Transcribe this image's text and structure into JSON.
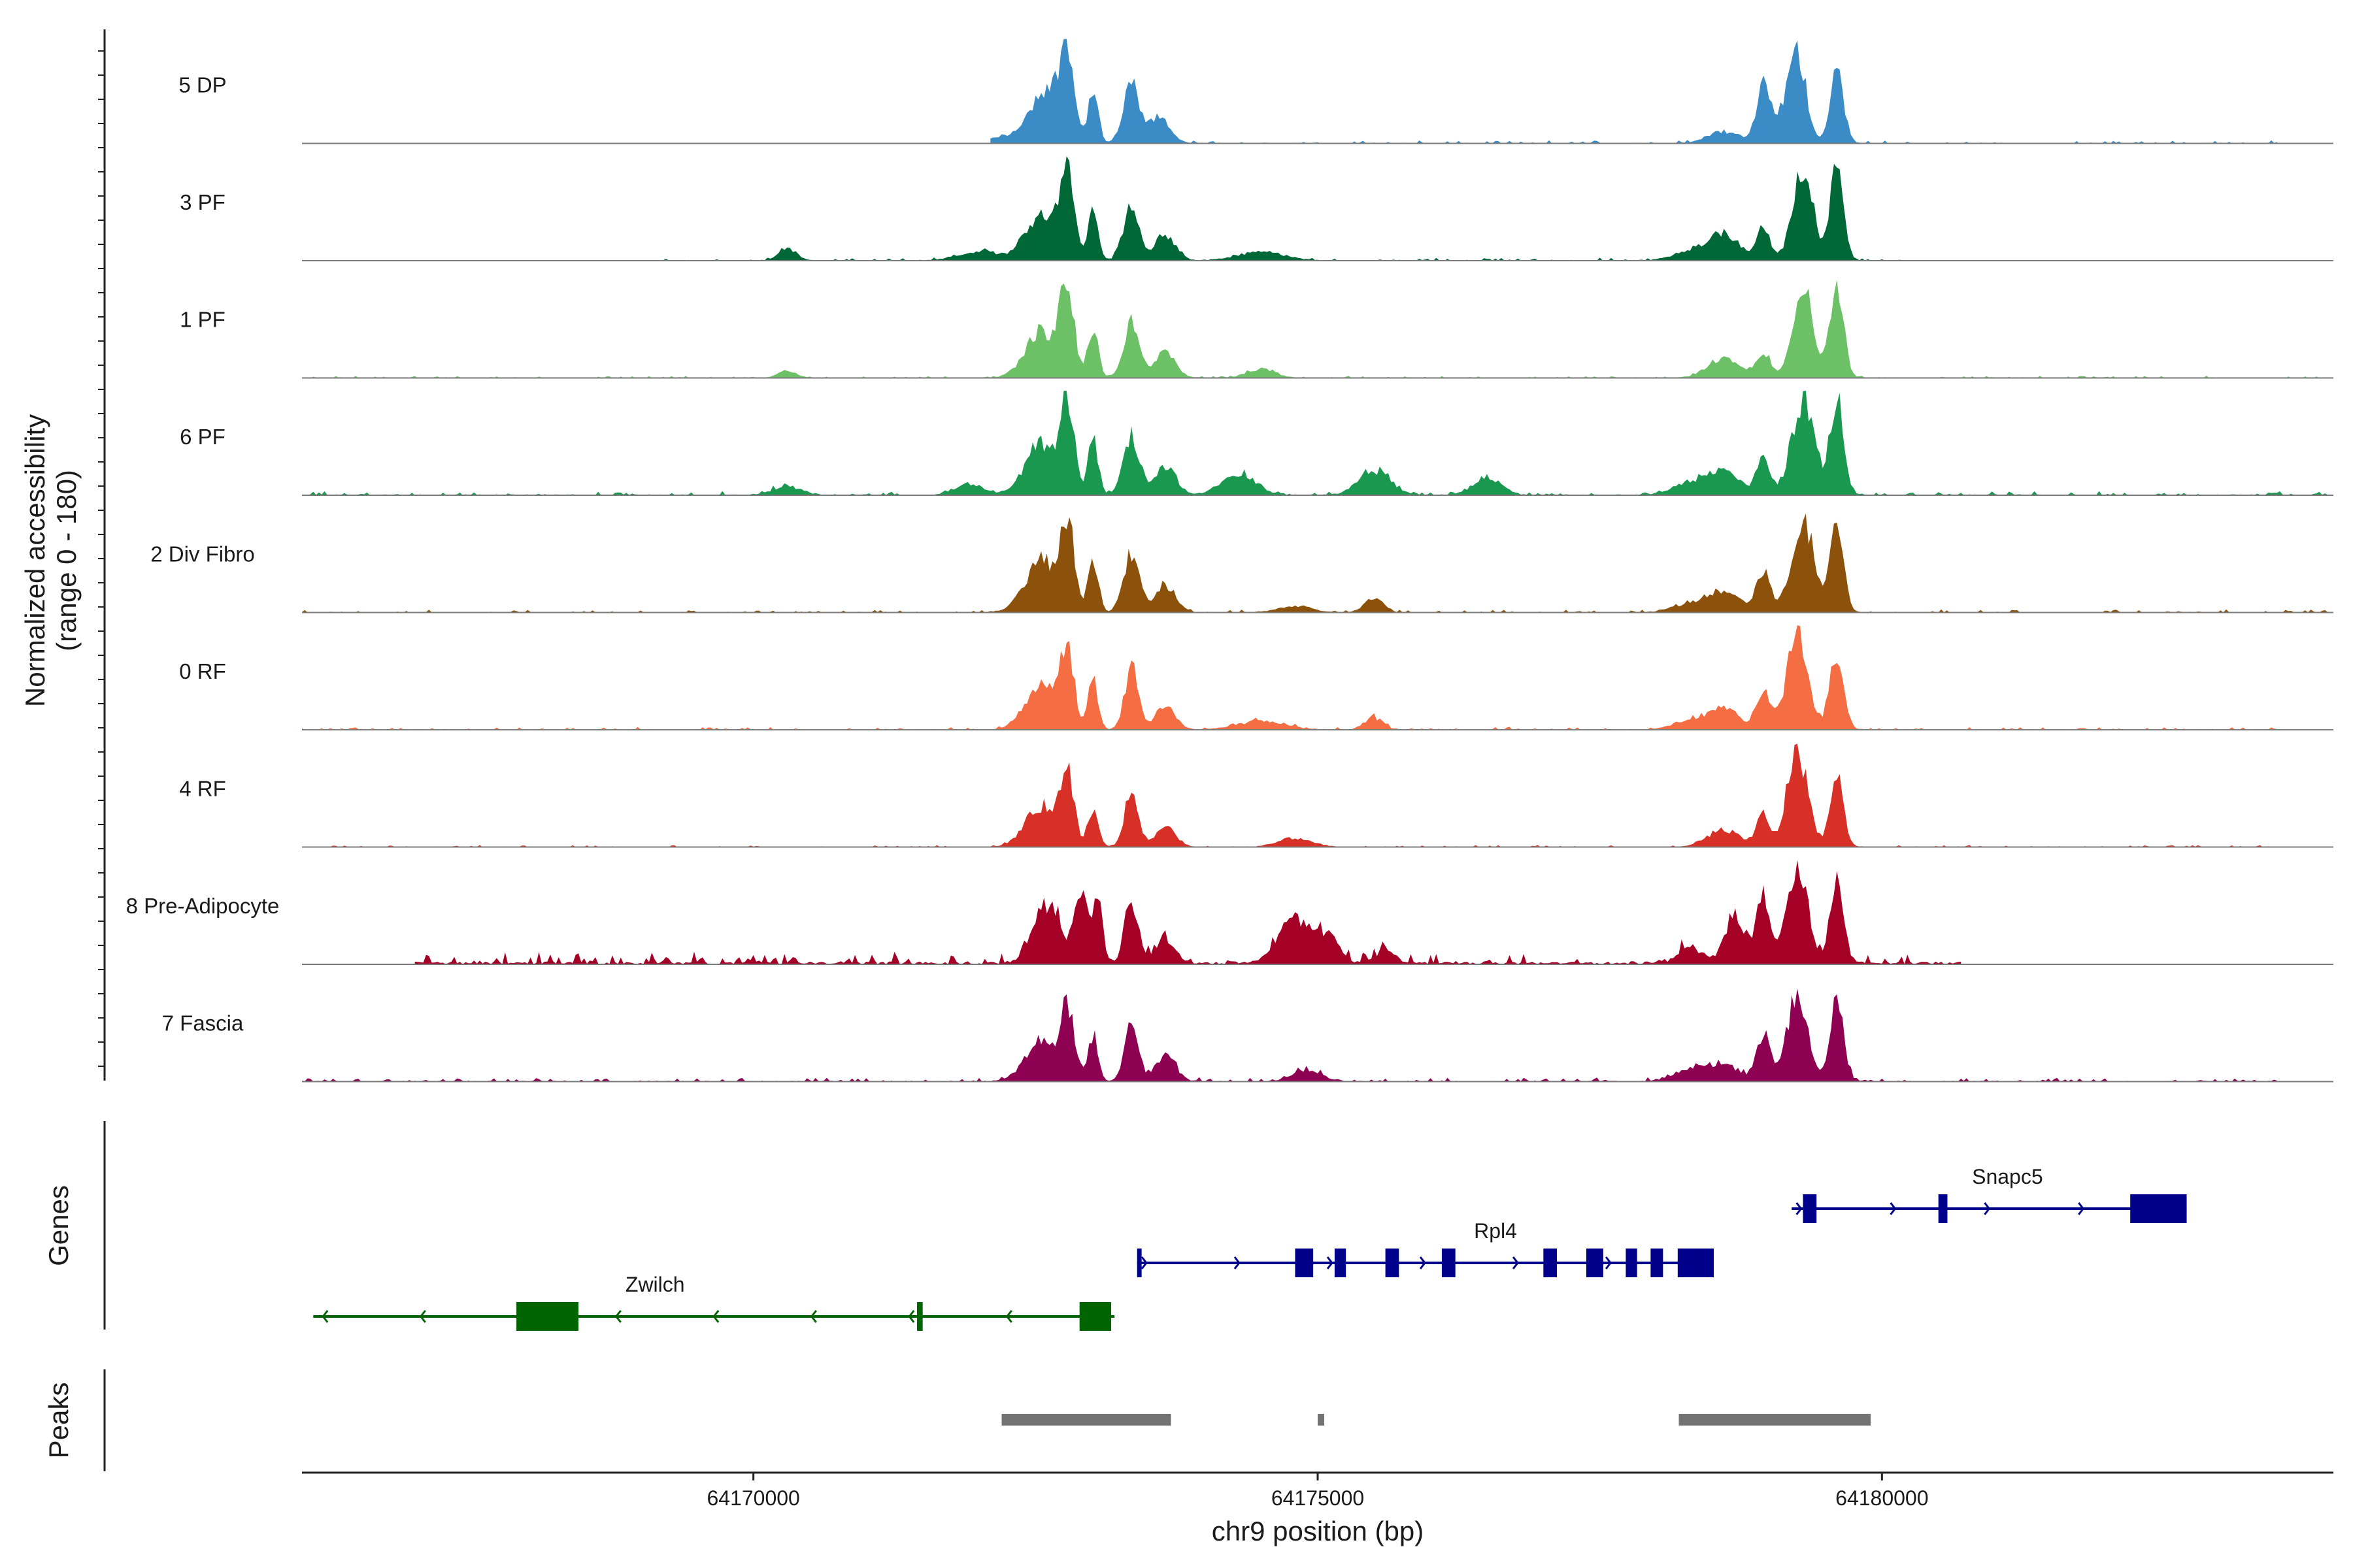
{
  "chart_data": {
    "type": "area",
    "title": "",
    "ylabel_line1": "Normalized accessibility",
    "ylabel_line2": "(range 0 - 180)",
    "xlabel": "chr9 position (bp)",
    "xlim": [
      64166000,
      64184000
    ],
    "ylim": [
      0,
      180
    ],
    "x_ticks": [
      64170000,
      64175000,
      64180000
    ],
    "x_tick_labels": [
      "64170000",
      "64175000",
      "64180000"
    ],
    "tracks": [
      {
        "name": "5 DP",
        "color": "#3A8BC6",
        "peaks": [
          [
            64172780,
            150,
            60
          ],
          [
            64172600,
            90,
            130
          ],
          [
            64173010,
            90,
            45
          ],
          [
            64173350,
            100,
            70
          ],
          [
            64173600,
            45,
            90
          ],
          [
            64172300,
            12,
            200
          ],
          [
            64178950,
            95,
            60
          ],
          [
            64179250,
            150,
            80
          ],
          [
            64179600,
            125,
            60
          ],
          [
            64178600,
            20,
            150
          ],
          [
            64179100,
            30,
            70
          ]
        ],
        "range": [
          64172100,
          64183500
        ],
        "noise": 3
      },
      {
        "name": "3 PF",
        "color": "#006837",
        "peaks": [
          [
            64172780,
            150,
            60
          ],
          [
            64172550,
            80,
            140
          ],
          [
            64173010,
            85,
            45
          ],
          [
            64173350,
            95,
            70
          ],
          [
            64173650,
            45,
            90
          ],
          [
            64170300,
            20,
            80
          ],
          [
            64172000,
            15,
            180
          ],
          [
            64174500,
            15,
            200
          ],
          [
            64178600,
            45,
            140
          ],
          [
            64178950,
            55,
            60
          ],
          [
            64179300,
            155,
            90
          ],
          [
            64179600,
            155,
            60
          ],
          [
            64178300,
            15,
            150
          ]
        ],
        "range": [
          64169100,
          64180200
        ],
        "noise": 3
      },
      {
        "name": "1 PF",
        "color": "#6CC066",
        "peaks": [
          [
            64172780,
            150,
            60
          ],
          [
            64172550,
            80,
            140
          ],
          [
            64173010,
            85,
            45
          ],
          [
            64173350,
            95,
            70
          ],
          [
            64173650,
            45,
            90
          ],
          [
            64170300,
            12,
            80
          ],
          [
            64174500,
            15,
            120
          ],
          [
            64178600,
            35,
            140
          ],
          [
            64178950,
            45,
            60
          ],
          [
            64179300,
            160,
            90
          ],
          [
            64179600,
            155,
            60
          ]
        ],
        "range": [
          64166000,
          64184000
        ],
        "noise": 2
      },
      {
        "name": "6 PF",
        "color": "#1A9850",
        "peaks": [
          [
            64172780,
            150,
            60
          ],
          [
            64172550,
            90,
            140
          ],
          [
            64173010,
            95,
            45
          ],
          [
            64173350,
            100,
            70
          ],
          [
            64173650,
            50,
            90
          ],
          [
            64171900,
            20,
            120
          ],
          [
            64174300,
            35,
            150
          ],
          [
            64175500,
            40,
            140
          ],
          [
            64176500,
            30,
            120
          ],
          [
            64170300,
            15,
            120
          ],
          [
            64178600,
            40,
            140
          ],
          [
            64178950,
            60,
            60
          ],
          [
            64179300,
            165,
            100
          ],
          [
            64179600,
            165,
            60
          ],
          [
            64178300,
            20,
            150
          ]
        ],
        "range": [
          64166000,
          64184000
        ],
        "noise": 4
      },
      {
        "name": "2 Div Fibro",
        "color": "#8C510A",
        "peaks": [
          [
            64172780,
            150,
            60
          ],
          [
            64172550,
            90,
            140
          ],
          [
            64173010,
            95,
            45
          ],
          [
            64173350,
            100,
            70
          ],
          [
            64173650,
            45,
            90
          ],
          [
            64174800,
            10,
            150
          ],
          [
            64175500,
            25,
            80
          ],
          [
            64178600,
            35,
            140
          ],
          [
            64178950,
            75,
            60
          ],
          [
            64179300,
            155,
            100
          ],
          [
            64179600,
            140,
            60
          ],
          [
            64178300,
            15,
            150
          ]
        ],
        "range": [
          64166000,
          64184000
        ],
        "noise": 3
      },
      {
        "name": "0 RF",
        "color": "#F46D43",
        "peaks": [
          [
            64172780,
            130,
            60
          ],
          [
            64172550,
            80,
            140
          ],
          [
            64173010,
            85,
            45
          ],
          [
            64173350,
            105,
            60
          ],
          [
            64173650,
            40,
            90
          ],
          [
            64174500,
            15,
            200
          ],
          [
            64175500,
            20,
            80
          ],
          [
            64178600,
            35,
            140
          ],
          [
            64178950,
            65,
            60
          ],
          [
            64179250,
            170,
            90
          ],
          [
            64179600,
            135,
            60
          ],
          [
            64178300,
            15,
            150
          ]
        ],
        "range": [
          64166000,
          64183500
        ],
        "noise": 3
      },
      {
        "name": "4 RF",
        "color": "#D73027",
        "peaks": [
          [
            64172780,
            120,
            60
          ],
          [
            64172550,
            70,
            140
          ],
          [
            64173010,
            65,
            45
          ],
          [
            64173350,
            95,
            60
          ],
          [
            64173650,
            35,
            90
          ],
          [
            64174800,
            15,
            150
          ],
          [
            64178600,
            30,
            140
          ],
          [
            64178950,
            55,
            60
          ],
          [
            64179250,
            165,
            90
          ],
          [
            64179600,
            115,
            60
          ]
        ],
        "range": [
          64166000,
          64183500
        ],
        "noise": 2
      },
      {
        "name": "8 Pre-Adipocyte",
        "color": "#A50026",
        "peaks": [
          [
            64172600,
            100,
            120
          ],
          [
            64172900,
            120,
            60
          ],
          [
            64173050,
            110,
            45
          ],
          [
            64173350,
            110,
            60
          ],
          [
            64173650,
            40,
            90
          ],
          [
            64174800,
            75,
            150
          ],
          [
            64175100,
            40,
            90
          ],
          [
            64175600,
            25,
            80
          ],
          [
            64178700,
            80,
            90
          ],
          [
            64178950,
            120,
            60
          ],
          [
            64179250,
            175,
            90
          ],
          [
            64179600,
            140,
            60
          ],
          [
            64178300,
            30,
            100
          ]
        ],
        "range": [
          64167000,
          64180700
        ],
        "noise": 12
      },
      {
        "name": "7 Fascia",
        "color": "#8E0152",
        "peaks": [
          [
            64172780,
            120,
            60
          ],
          [
            64172550,
            70,
            140
          ],
          [
            64173010,
            80,
            45
          ],
          [
            64173350,
            95,
            60
          ],
          [
            64173650,
            45,
            90
          ],
          [
            64174900,
            20,
            120
          ],
          [
            64178600,
            25,
            140
          ],
          [
            64178950,
            75,
            60
          ],
          [
            64179250,
            150,
            90
          ],
          [
            64179600,
            135,
            60
          ],
          [
            64178300,
            20,
            150
          ]
        ],
        "range": [
          64166000,
          64183500
        ],
        "noise": 4
      }
    ],
    "genes": [
      {
        "name": "Zwilch",
        "strand": "-",
        "color": "#006400",
        "start": 64166100,
        "end": 64173200,
        "row": 2,
        "exons": [
          [
            64167900,
            64168450
          ],
          [
            64171450,
            64171500
          ],
          [
            64172890,
            64173170
          ]
        ]
      },
      {
        "name": "Rpl4",
        "strand": "+",
        "color": "#00008B",
        "start": 64173400,
        "end": 64178500,
        "row": 1,
        "exons": [
          [
            64173400,
            64173440
          ],
          [
            64174800,
            64174960
          ],
          [
            64175150,
            64175250
          ],
          [
            64175600,
            64175720
          ],
          [
            64176100,
            64176220
          ],
          [
            64177000,
            64177120
          ],
          [
            64177380,
            64177530
          ],
          [
            64177730,
            64177830
          ],
          [
            64177950,
            64178060
          ],
          [
            64178190,
            64178510
          ]
        ]
      },
      {
        "name": "Snapc5",
        "strand": "+",
        "color": "#00008B",
        "start": 64179200,
        "end": 64182700,
        "row": 0,
        "exons": [
          [
            64179300,
            64179420
          ],
          [
            64180500,
            64180580
          ],
          [
            64182200,
            64182700
          ]
        ]
      }
    ],
    "peak_regions": [
      [
        64172200,
        64173700
      ],
      [
        64175000,
        64175050
      ],
      [
        64178200,
        64179900
      ]
    ],
    "panel_labels": {
      "genes": "Genes",
      "peaks": "Peaks"
    }
  }
}
